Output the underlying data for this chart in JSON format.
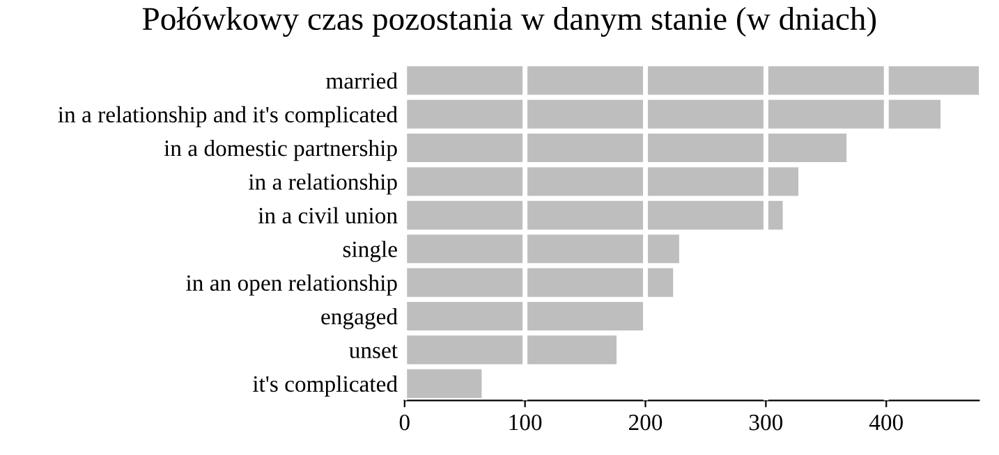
{
  "chart_data": {
    "type": "bar",
    "orientation": "horizontal",
    "title": "Połówkowy czas pozostania w danym stanie (w dniach)",
    "categories": [
      "married",
      "in a relationship and it's complicated",
      "in a domestic partnership",
      "in a relationship",
      "in a civil union",
      "single",
      "in an open relationship",
      "engaged",
      "unset",
      "it's complicated"
    ],
    "values": [
      477,
      445,
      367,
      327,
      314,
      228,
      223,
      198,
      176,
      64
    ],
    "color": "#bebebe",
    "xlim": [
      0,
      477
    ],
    "xticks": [
      0,
      100,
      200,
      300,
      400
    ],
    "grid": "x"
  }
}
